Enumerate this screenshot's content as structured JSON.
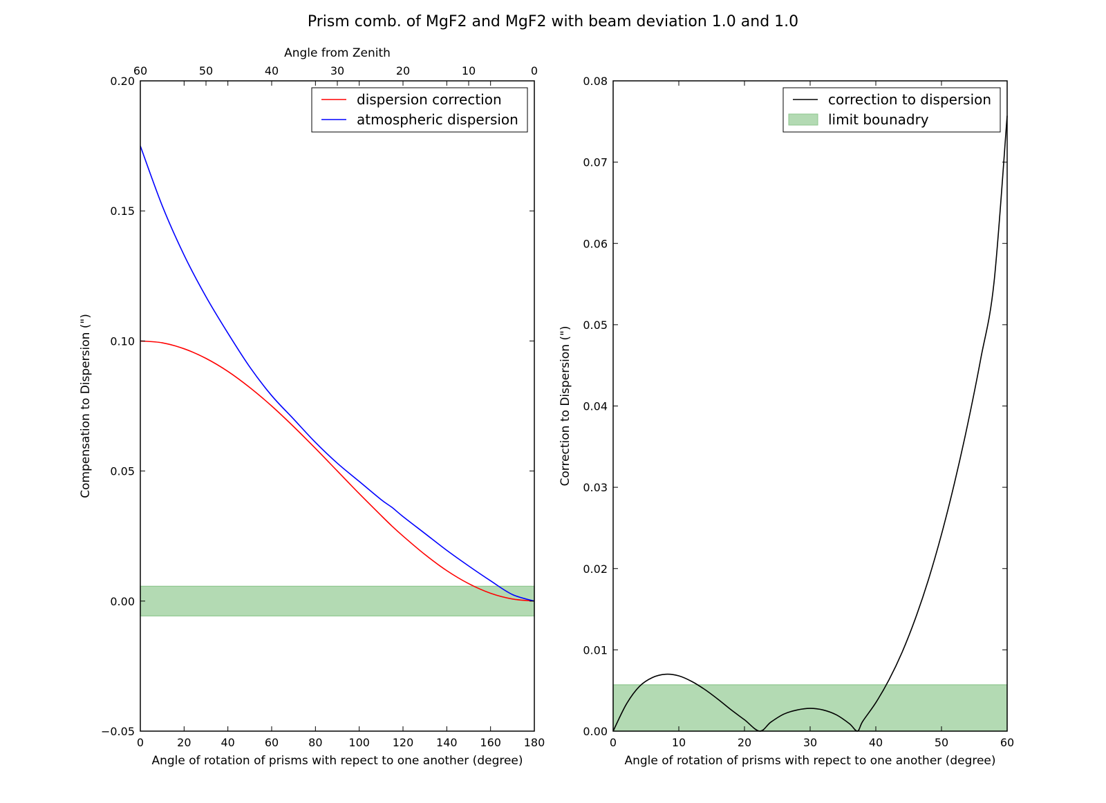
{
  "title": "Prism comb. of MgF2 and MgF2 with beam deviation 1.0 and 1.0",
  "chart_data": [
    {
      "type": "line",
      "xlabel": "Angle of rotation of prisms with repect to one another (degree)",
      "ylabel": "Compensation to Dispersion (\")",
      "top_xlabel": "Angle from Zenith",
      "xlim": [
        0,
        180
      ],
      "ylim": [
        -0.05,
        0.2
      ],
      "xticks": [
        0,
        20,
        40,
        60,
        80,
        100,
        120,
        140,
        160,
        180
      ],
      "yticks": [
        -0.05,
        0.0,
        0.05,
        0.1,
        0.15,
        0.2
      ],
      "ytick_labels": [
        "−0.05",
        "0.00",
        "0.05",
        "0.10",
        "0.15",
        "0.20"
      ],
      "top_xticks": [
        60,
        50,
        40,
        30,
        20,
        10,
        0
      ],
      "top_xlim": [
        60,
        0
      ],
      "band": {
        "y0": -0.0057,
        "y1": 0.0057,
        "color": "#b3dab3",
        "edge": "#8cc68c"
      },
      "grid": false,
      "legend_position": "upper-right",
      "series": [
        {
          "name": "dispersion correction",
          "color": "#ff0000",
          "x": [
            0,
            10,
            20,
            30,
            40,
            50,
            60,
            70,
            80,
            90,
            100,
            110,
            115,
            120,
            130,
            140,
            150,
            160,
            170,
            180
          ],
          "y": [
            0.1,
            0.0993,
            0.097,
            0.0933,
            0.0883,
            0.0821,
            0.075,
            0.0671,
            0.0587,
            0.05,
            0.0413,
            0.0329,
            0.0288,
            0.025,
            0.0179,
            0.0117,
            0.0067,
            0.003,
            0.0008,
            0.0
          ]
        },
        {
          "name": "atmospheric dispersion",
          "color": "#0000ff",
          "x": [
            0,
            10,
            20,
            30,
            40,
            50,
            60,
            70,
            80,
            90,
            100,
            110,
            115,
            120,
            130,
            140,
            150,
            160,
            170,
            180
          ],
          "y": [
            0.175,
            0.152,
            0.133,
            0.117,
            0.103,
            0.09,
            0.079,
            0.07,
            0.061,
            0.053,
            0.046,
            0.039,
            0.036,
            0.0325,
            0.026,
            0.0195,
            0.0135,
            0.0078,
            0.0025,
            0.0
          ]
        }
      ]
    },
    {
      "type": "line",
      "xlabel": "Angle of rotation of prisms with repect to one another (degree)",
      "ylabel": "Correction to Dispersion (\")",
      "xlim": [
        0,
        60
      ],
      "ylim": [
        0,
        0.08
      ],
      "xticks": [
        0,
        10,
        20,
        30,
        40,
        50,
        60
      ],
      "yticks": [
        0.0,
        0.01,
        0.02,
        0.03,
        0.04,
        0.05,
        0.06,
        0.07,
        0.08
      ],
      "ytick_labels": [
        "0.00",
        "0.01",
        "0.02",
        "0.03",
        "0.04",
        "0.05",
        "0.06",
        "0.07",
        "0.08"
      ],
      "band": {
        "y0": 0.0,
        "y1": 0.0057,
        "color": "#b3dab3",
        "edge": "#8cc68c"
      },
      "grid": false,
      "legend_position": "upper-right",
      "series": [
        {
          "name": "correction to dispersion",
          "color": "#000000",
          "x": [
            0,
            2,
            4,
            6,
            8,
            10,
            12,
            14,
            16,
            18,
            20,
            22.3,
            24,
            26,
            28,
            30,
            32,
            34,
            36,
            37.2,
            38,
            40,
            42,
            44,
            46,
            48,
            50,
            52,
            54,
            56,
            58,
            60
          ],
          "y": [
            0.0,
            0.0033,
            0.0055,
            0.0066,
            0.007,
            0.0068,
            0.0061,
            0.0051,
            0.0039,
            0.0026,
            0.0014,
            0.0,
            0.0011,
            0.0021,
            0.0026,
            0.0028,
            0.0026,
            0.002,
            0.0009,
            0.0,
            0.0012,
            0.0035,
            0.0063,
            0.0097,
            0.0138,
            0.0186,
            0.0242,
            0.0306,
            0.0378,
            0.0459,
            0.0552,
            0.0757
          ]
        }
      ],
      "legend_extra": {
        "name": "limit bounadry",
        "swatch": "band"
      }
    }
  ]
}
